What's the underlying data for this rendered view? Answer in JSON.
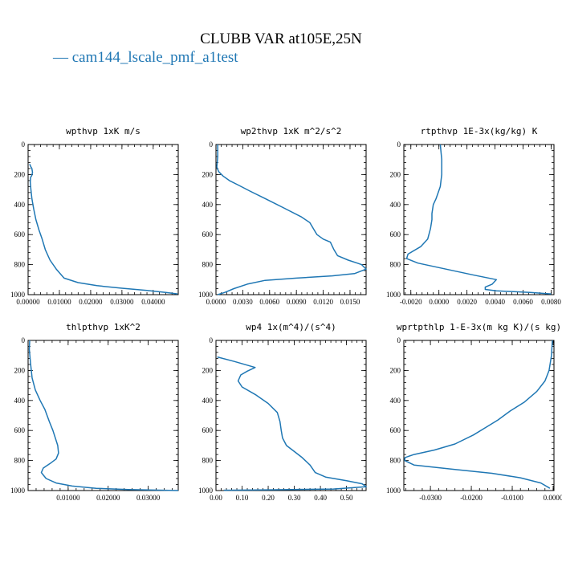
{
  "figure": {
    "title": "CLUBB VAR at105E,25N",
    "legend": "— cam144_lscale_pmf_a1test",
    "line_color": "#1f77b4"
  },
  "chart_data": [
    {
      "type": "line",
      "title": "wpthvp  1xK m/s",
      "xlim": [
        0,
        0.048
      ],
      "ylim": [
        1000,
        0
      ],
      "x_ticks": [
        0.0,
        0.01,
        0.02,
        0.03,
        0.04
      ],
      "x_tick_labels": [
        "0.00000",
        "0.01000",
        "0.02000",
        "0.03000",
        "0.04000"
      ],
      "y_ticks": [
        0,
        200,
        400,
        600,
        800,
        1000
      ],
      "y_tick_labels": [
        "0",
        "200",
        "400",
        "600",
        "800",
        "1000"
      ],
      "series": [
        {
          "x": [
            0.0005,
            0.0008,
            0.0012,
            0.0014,
            0.0012,
            0.0008,
            0.0007,
            0.0009,
            0.0012,
            0.0018,
            0.0025,
            0.0035,
            0.0045,
            0.0055,
            0.007,
            0.009,
            0.0115,
            0.016,
            0.022,
            0.03,
            0.038,
            0.044,
            0.0478
          ],
          "y": [
            130,
            145,
            160,
            185,
            205,
            220,
            250,
            300,
            360,
            430,
            500,
            570,
            630,
            700,
            770,
            830,
            890,
            920,
            940,
            957,
            972,
            985,
            995
          ]
        }
      ]
    },
    {
      "type": "line",
      "title": "wp2thvp  1xK m^2/s^2",
      "xlim": [
        0,
        0.0168
      ],
      "ylim": [
        1000,
        0
      ],
      "x_ticks": [
        0.0,
        0.003,
        0.006,
        0.009,
        0.012,
        0.015
      ],
      "x_tick_labels": [
        "0.0000",
        "0.0030",
        "0.0060",
        "0.0090",
        "0.0120",
        "0.0150"
      ],
      "y_ticks": [
        0,
        200,
        400,
        600,
        800,
        1000
      ],
      "y_tick_labels": [
        "0",
        "200",
        "400",
        "600",
        "800",
        "1000"
      ],
      "series": [
        {
          "x": [
            0.0002,
            0.0002,
            0.0001,
            0.0003,
            0.0008,
            0.0015,
            0.0025,
            0.0038,
            0.0055,
            0.0075,
            0.0095,
            0.0105,
            0.0109,
            0.0113,
            0.012,
            0.0128,
            0.0132,
            0.0136,
            0.0148,
            0.0158,
            0.0163,
            0.0168,
            0.0155,
            0.013,
            0.009,
            0.0055,
            0.0035,
            0.002,
            0.001,
            0.0002
          ],
          "y": [
            0,
            80,
            150,
            180,
            210,
            240,
            270,
            310,
            360,
            420,
            480,
            520,
            560,
            600,
            630,
            650,
            700,
            740,
            770,
            790,
            800,
            830,
            860,
            875,
            890,
            905,
            930,
            960,
            985,
            1000
          ]
        }
      ]
    },
    {
      "type": "line",
      "title": "rtpthvp  1E-3x(kg/kg) K",
      "xlim": [
        -0.0025,
        0.0082
      ],
      "ylim": [
        1000,
        0
      ],
      "x_ticks": [
        -0.002,
        0.0,
        0.002,
        0.004,
        0.006,
        0.008
      ],
      "x_tick_labels": [
        "-0.0020",
        "0.0000",
        "0.0020",
        "0.0040",
        "0.0060",
        "0.0080"
      ],
      "y_ticks": [
        0,
        200,
        400,
        600,
        800,
        1000
      ],
      "y_tick_labels": [
        "0",
        "200",
        "400",
        "600",
        "800",
        "1000"
      ],
      "series": [
        {
          "x": [
            0.0001,
            0.0002,
            0.0002,
            0.0001,
            -0.0002,
            -0.0004,
            -0.0005,
            -0.0005,
            -0.0006,
            -0.0008,
            -0.0013,
            -0.0022,
            -0.0023,
            -0.0015,
            0.0005,
            0.0025,
            0.0041,
            0.0038,
            0.0033,
            0.0033,
            0.0041,
            0.0065,
            0.008
          ],
          "y": [
            0,
            100,
            200,
            280,
            360,
            400,
            460,
            500,
            560,
            630,
            680,
            730,
            760,
            790,
            830,
            870,
            900,
            930,
            950,
            965,
            975,
            985,
            995
          ]
        }
      ]
    },
    {
      "type": "line",
      "title": "thlpthvp  1xK^2",
      "xlim": [
        0,
        0.0375
      ],
      "ylim": [
        1000,
        0
      ],
      "x_ticks": [
        0.01,
        0.02,
        0.03
      ],
      "x_tick_labels": [
        "0.01000",
        "0.02000",
        "0.03000"
      ],
      "y_ticks": [
        0,
        200,
        400,
        600,
        800,
        1000
      ],
      "y_tick_labels": [
        "0",
        "200",
        "400",
        "600",
        "800",
        "1000"
      ],
      "series": [
        {
          "x": [
            0.0004,
            0.0003,
            0.0006,
            0.001,
            0.0018,
            0.003,
            0.0042,
            0.0053,
            0.0062,
            0.0068,
            0.0074,
            0.0076,
            0.007,
            0.0055,
            0.0038,
            0.0033,
            0.0045,
            0.007,
            0.011,
            0.017,
            0.025,
            0.034,
            0.0375
          ],
          "y": [
            0,
            60,
            150,
            250,
            330,
            400,
            460,
            540,
            600,
            650,
            700,
            750,
            790,
            820,
            850,
            880,
            920,
            950,
            970,
            985,
            993,
            998,
            1000
          ]
        }
      ]
    },
    {
      "type": "line",
      "title": "wp4  1x(m^4)/(s^4)",
      "xlim": [
        0,
        0.575
      ],
      "ylim": [
        1000,
        0
      ],
      "x_ticks": [
        0.0,
        0.1,
        0.2,
        0.3,
        0.4,
        0.5
      ],
      "x_tick_labels": [
        "0.00",
        "0.10",
        "0.20",
        "0.30",
        "0.40",
        "0.50"
      ],
      "y_ticks": [
        0,
        200,
        400,
        600,
        800,
        1000
      ],
      "y_tick_labels": [
        "0",
        "200",
        "400",
        "600",
        "800",
        "1000"
      ],
      "series": [
        {
          "x": [
            0.005,
            0.07,
            0.15,
            0.12,
            0.095,
            0.085,
            0.1,
            0.15,
            0.2,
            0.235,
            0.245,
            0.25,
            0.255,
            0.27,
            0.3,
            0.33,
            0.36,
            0.38,
            0.42,
            0.5,
            0.56,
            0.575,
            0.45,
            0.2,
            0.03
          ],
          "y": [
            110,
            140,
            180,
            205,
            230,
            270,
            310,
            360,
            420,
            480,
            540,
            600,
            650,
            700,
            740,
            780,
            830,
            880,
            910,
            935,
            955,
            975,
            990,
            995,
            998
          ]
        }
      ]
    },
    {
      "type": "line",
      "title": "wprtpthlp  1-E-3x(m kg K)/(s kg)",
      "xlim": [
        -0.0365,
        0.0002
      ],
      "ylim": [
        1000,
        0
      ],
      "x_ticks": [
        -0.03,
        -0.02,
        -0.01,
        0.0
      ],
      "x_tick_labels": [
        "-0.0300",
        "-0.0200",
        "-0.0100",
        "0.0000"
      ],
      "y_ticks": [
        0,
        200,
        400,
        600,
        800,
        1000
      ],
      "y_tick_labels": [
        "0",
        "200",
        "400",
        "600",
        "800",
        "1000"
      ],
      "series": [
        {
          "x": [
            -0.0002,
            -0.0004,
            -0.001,
            -0.002,
            -0.004,
            -0.007,
            -0.0105,
            -0.0135,
            -0.0165,
            -0.0195,
            -0.024,
            -0.029,
            -0.034,
            -0.0362,
            -0.0363,
            -0.034,
            -0.024,
            -0.015,
            -0.008,
            -0.003,
            -0.0008
          ],
          "y": [
            0,
            100,
            200,
            270,
            340,
            410,
            470,
            530,
            580,
            630,
            690,
            730,
            760,
            780,
            800,
            830,
            860,
            885,
            915,
            950,
            985
          ]
        }
      ]
    }
  ]
}
